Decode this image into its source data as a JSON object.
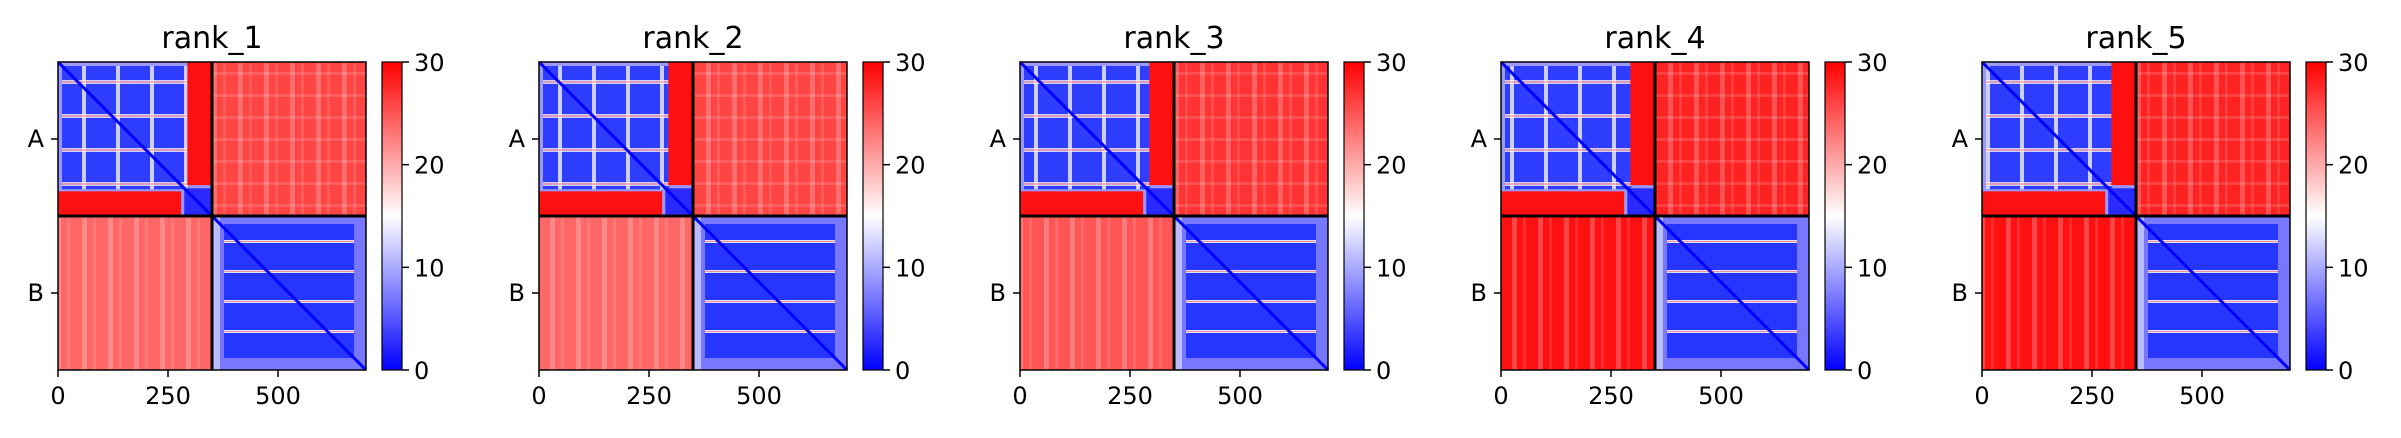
{
  "chart_data": [
    {
      "type": "heatmap",
      "title": "rank_1",
      "x_ticks": [
        0,
        250,
        500
      ],
      "y_labels": [
        "A",
        "B"
      ],
      "chain_boundary": 350,
      "xlim": [
        0,
        700
      ],
      "colorbar": {
        "range": [
          0,
          30
        ],
        "ticks": [
          0,
          10,
          20,
          30
        ],
        "colors": [
          "#0000ff",
          "#ffffff",
          "#ff0000"
        ]
      },
      "offdiag_AB_level": 26,
      "offdiag_BA_level": 24,
      "intra_A_level": 9,
      "intra_B_level": 7
    },
    {
      "type": "heatmap",
      "title": "rank_2",
      "x_ticks": [
        0,
        250,
        500
      ],
      "y_labels": [
        "A",
        "B"
      ],
      "chain_boundary": 350,
      "xlim": [
        0,
        700
      ],
      "colorbar": {
        "range": [
          0,
          30
        ],
        "ticks": [
          0,
          10,
          20,
          30
        ],
        "colors": [
          "#0000ff",
          "#ffffff",
          "#ff0000"
        ]
      },
      "offdiag_AB_level": 26,
      "offdiag_BA_level": 24,
      "intra_A_level": 9,
      "intra_B_level": 7
    },
    {
      "type": "heatmap",
      "title": "rank_3",
      "x_ticks": [
        0,
        250,
        500
      ],
      "y_labels": [
        "A",
        "B"
      ],
      "chain_boundary": 350,
      "xlim": [
        0,
        700
      ],
      "colorbar": {
        "range": [
          0,
          30
        ],
        "ticks": [
          0,
          10,
          20,
          30
        ],
        "colors": [
          "#0000ff",
          "#ffffff",
          "#ff0000"
        ]
      },
      "offdiag_AB_level": 27,
      "offdiag_BA_level": 25,
      "intra_A_level": 9,
      "intra_B_level": 7
    },
    {
      "type": "heatmap",
      "title": "rank_4",
      "x_ticks": [
        0,
        250,
        500
      ],
      "y_labels": [
        "A",
        "B"
      ],
      "chain_boundary": 350,
      "xlim": [
        0,
        700
      ],
      "colorbar": {
        "range": [
          0,
          30
        ],
        "ticks": [
          0,
          10,
          20,
          30
        ],
        "colors": [
          "#0000ff",
          "#ffffff",
          "#ff0000"
        ]
      },
      "offdiag_AB_level": 28,
      "offdiag_BA_level": 29,
      "intra_A_level": 9,
      "intra_B_level": 7
    },
    {
      "type": "heatmap",
      "title": "rank_5",
      "x_ticks": [
        0,
        250,
        500
      ],
      "y_labels": [
        "A",
        "B"
      ],
      "chain_boundary": 350,
      "xlim": [
        0,
        700
      ],
      "colorbar": {
        "range": [
          0,
          30
        ],
        "ticks": [
          0,
          10,
          20,
          30
        ],
        "colors": [
          "#0000ff",
          "#ffffff",
          "#ff0000"
        ]
      },
      "offdiag_AB_level": 28,
      "offdiag_BA_level": 29,
      "intra_A_level": 9,
      "intra_B_level": 7
    }
  ]
}
